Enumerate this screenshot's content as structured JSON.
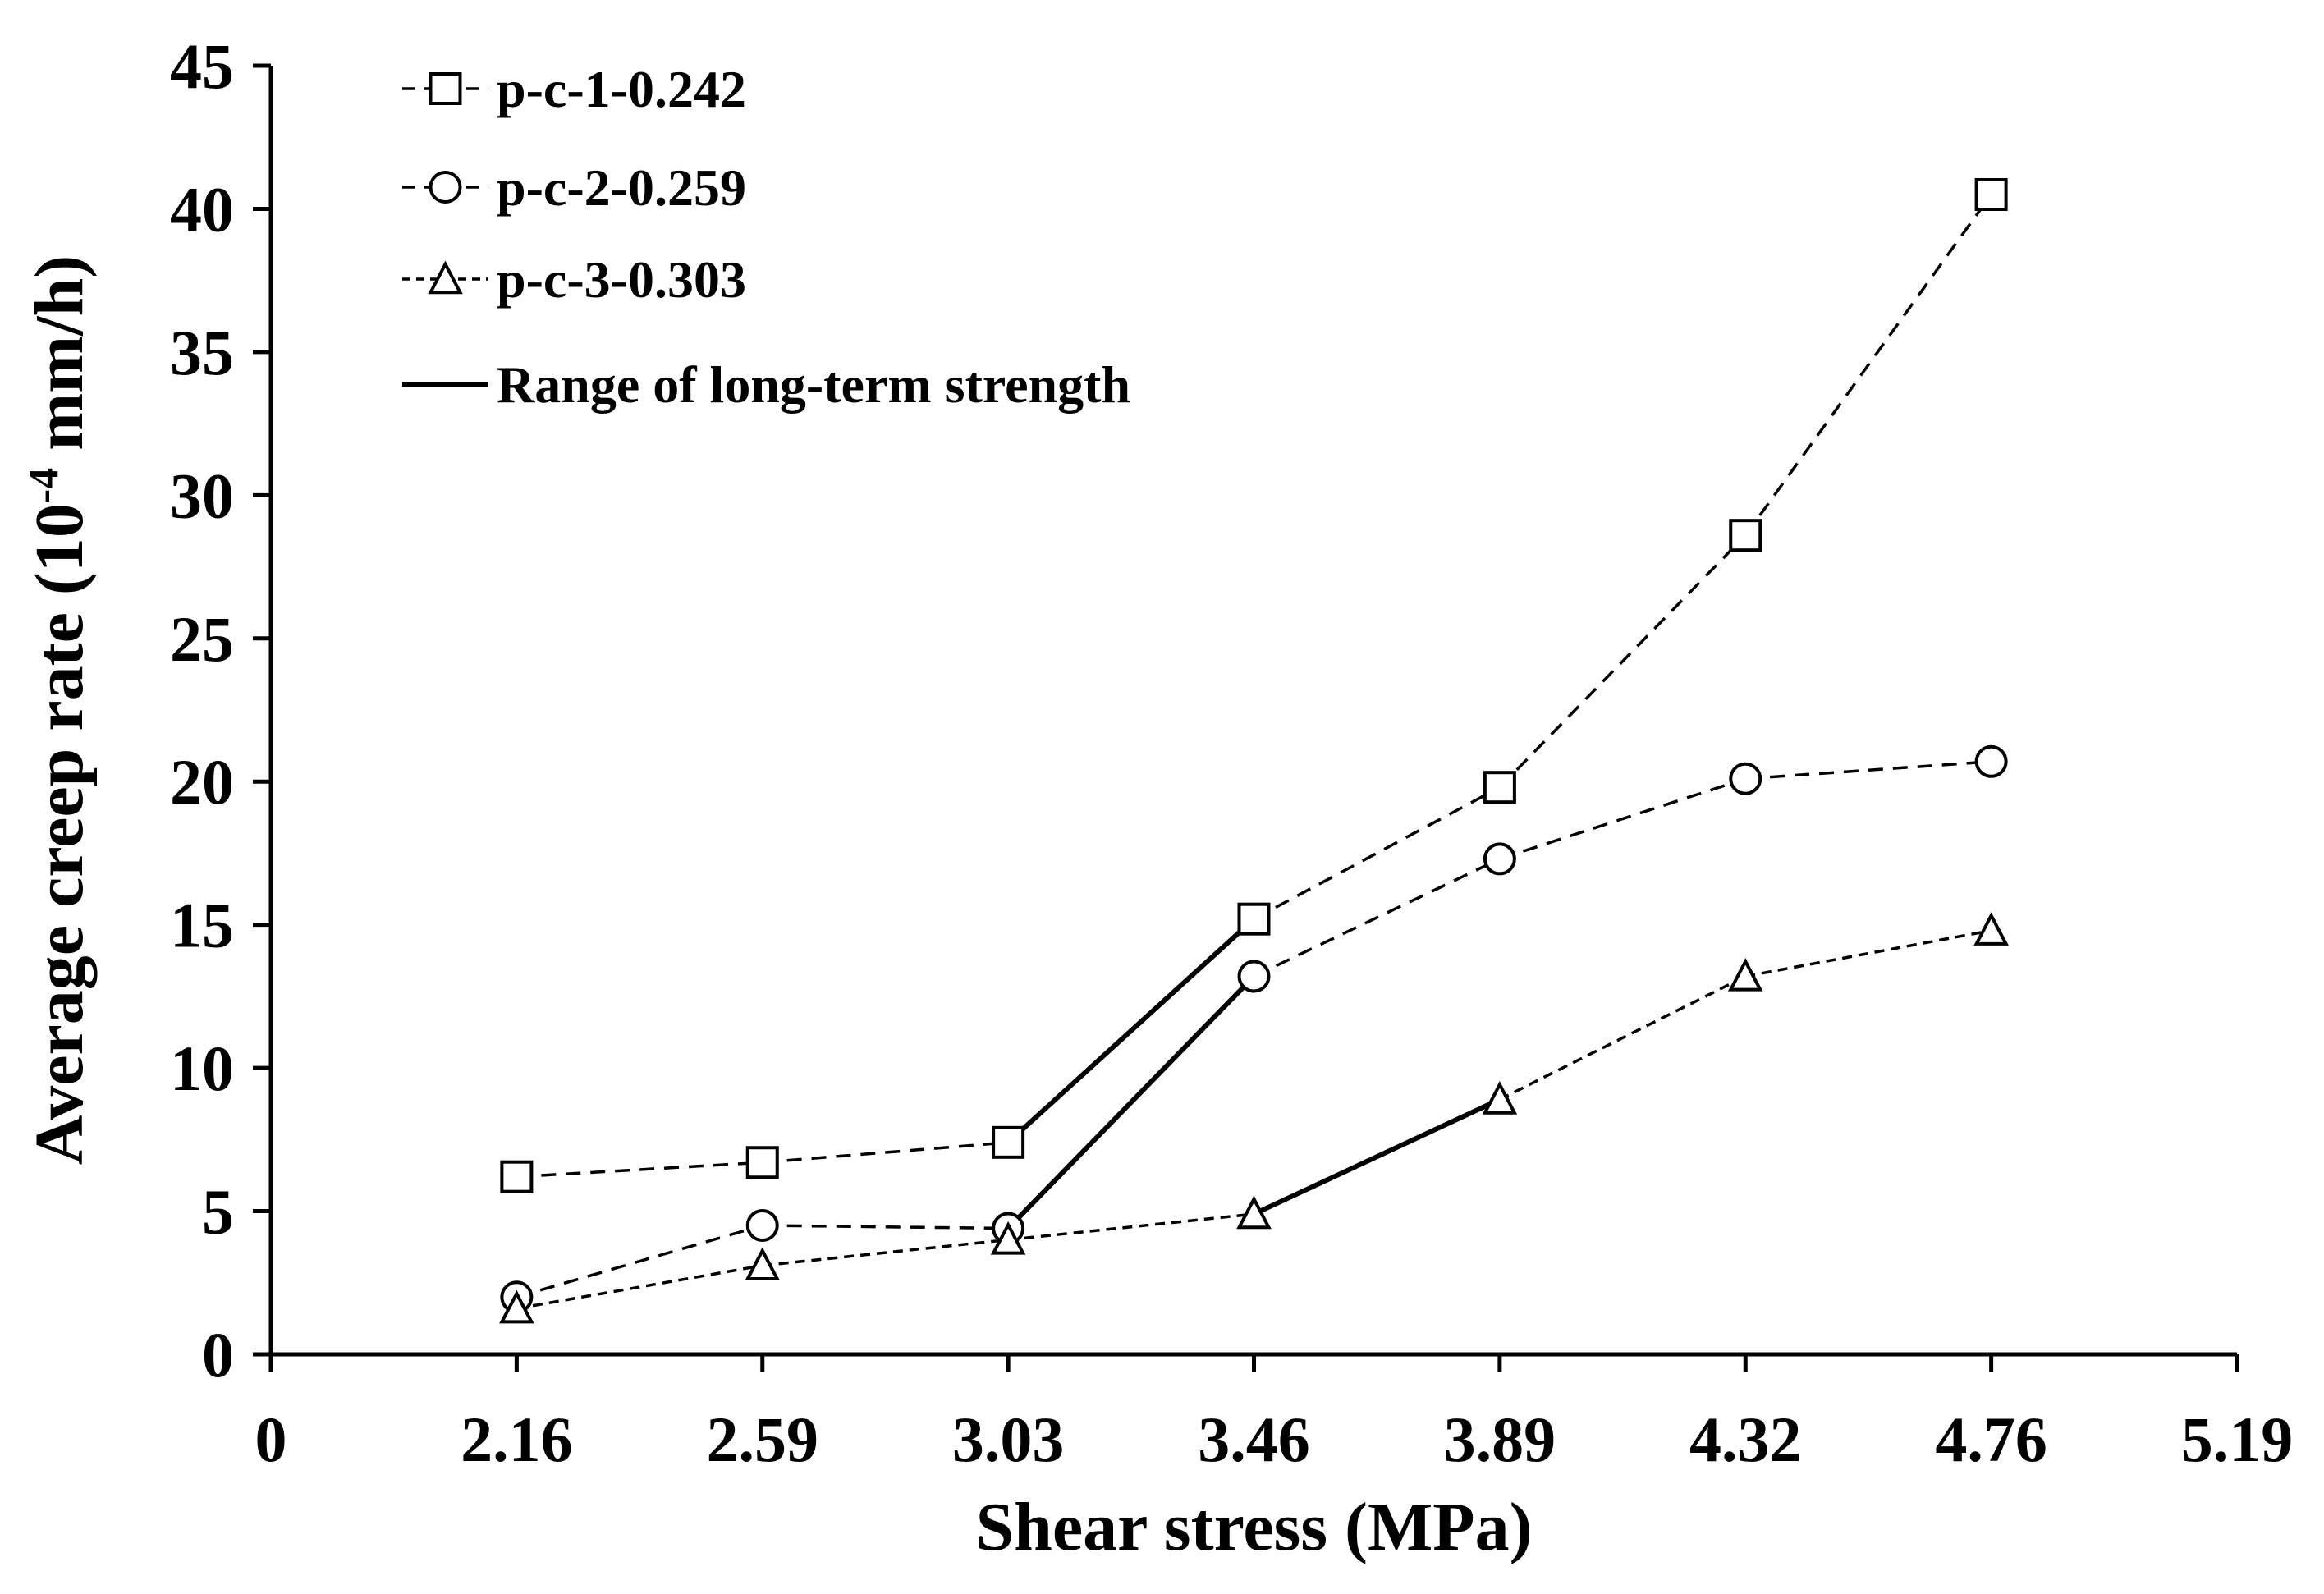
{
  "chart_data": {
    "type": "line",
    "title": "",
    "xlabel": "Shear stress (MPa)",
    "ylabel_main": "Average creep rate (10",
    "ylabel_sup": "-4",
    "ylabel_tail": " mm/h)",
    "xlim": [
      0,
      8
    ],
    "ylim": [
      0,
      45
    ],
    "x_tick_labels": [
      "0",
      "2.16",
      "2.59",
      "3.03",
      "3.46",
      "3.89",
      "4.32",
      "4.76",
      "5.19"
    ],
    "y_ticks": [
      0,
      5,
      10,
      15,
      20,
      25,
      30,
      35,
      40,
      45
    ],
    "y_tick_labels": [
      "0",
      "5",
      "10",
      "15",
      "20",
      "25",
      "30",
      "35",
      "40",
      "45"
    ],
    "x_index": [
      1,
      2,
      3,
      4,
      5,
      6,
      7
    ],
    "series": [
      {
        "name": "p-c-1-0.242",
        "marker": "square",
        "dash": "dashed",
        "values": [
          6.2,
          6.7,
          7.4,
          15.2,
          19.8,
          28.6,
          40.5
        ],
        "long_term_range": [
          3,
          4
        ]
      },
      {
        "name": "p-c-2-0.259",
        "marker": "circle",
        "dash": "dashed",
        "values": [
          2.0,
          4.5,
          4.4,
          13.2,
          17.3,
          20.1,
          20.7
        ],
        "long_term_range": [
          3,
          4
        ]
      },
      {
        "name": "p-c-3-0.303",
        "marker": "triangle",
        "dash": "dotted",
        "values": [
          1.6,
          3.1,
          4.0,
          4.9,
          8.9,
          13.2,
          14.8
        ],
        "long_term_range": [
          4,
          5
        ]
      }
    ],
    "range_legend_label": "Range of long-term strength",
    "legend_position": "top-left",
    "grid": false
  }
}
